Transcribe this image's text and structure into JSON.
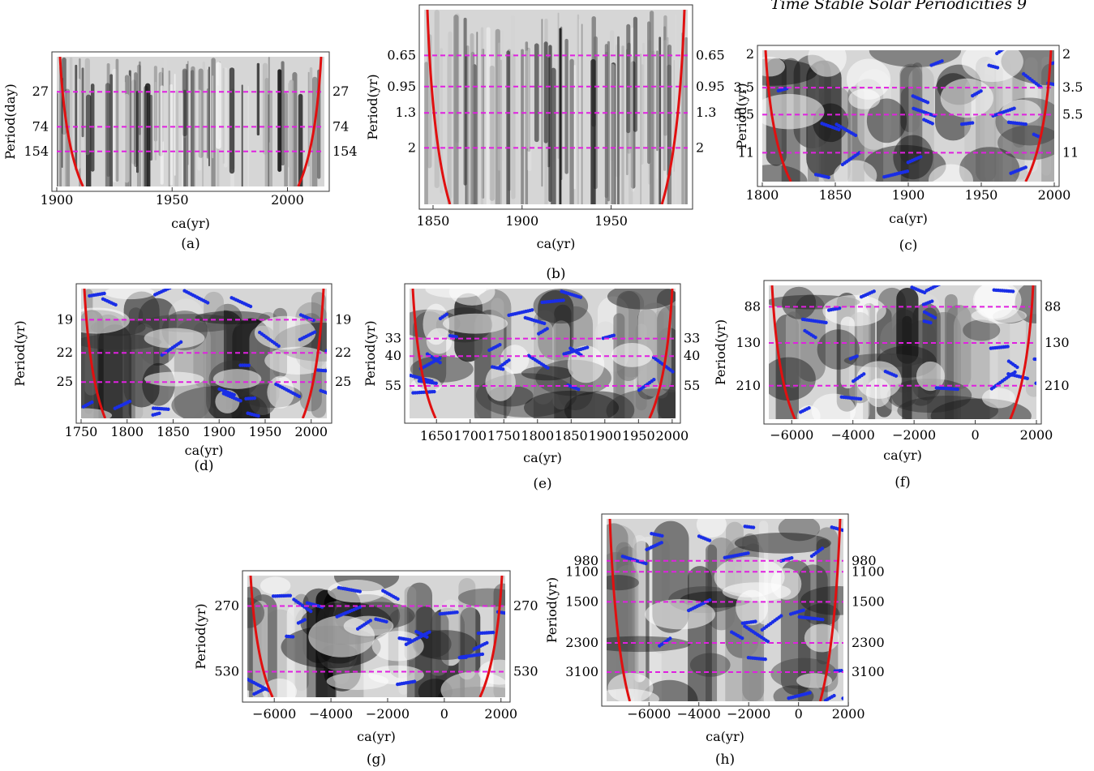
{
  "page_header": "Time Stable Solar Periodicities    9",
  "colors": {
    "cone": "#e01010",
    "ridge": "#1a2ee6",
    "guide": "#e020e0",
    "axis": "#333333"
  },
  "chart_data": [
    {
      "id": "a",
      "type": "heatmap",
      "caption": "(a)",
      "xlabel": "ca(yr)",
      "ylabel": "Period(day)",
      "xlim": [
        1900,
        2016
      ],
      "xticks": [
        1900,
        1950,
        2000
      ],
      "yticks": [
        "27",
        "74",
        "154"
      ],
      "guide_lines": [
        "27",
        "74",
        "154"
      ],
      "right_labels": [
        "27",
        "74",
        "154"
      ],
      "ridge_points": false
    },
    {
      "id": "b",
      "type": "heatmap",
      "caption": "(b)",
      "xlabel": "ca(yr)",
      "ylabel": "Period(yr)",
      "xlim": [
        1845,
        1993
      ],
      "xticks": [
        1850,
        1900,
        1950
      ],
      "yticks": [
        "0.65",
        "0.95",
        "1.3",
        "2"
      ],
      "guide_lines": [
        "0.65",
        "0.95",
        "1.3",
        "2"
      ],
      "right_labels": [
        "0.65",
        "0.95",
        "1.3",
        "2"
      ],
      "ridge_points": false
    },
    {
      "id": "c",
      "type": "heatmap",
      "caption": "(c)",
      "xlabel": "ca(yr)",
      "ylabel": "Period(yr)",
      "xlim": [
        1800,
        2000
      ],
      "xticks": [
        1800,
        1850,
        1900,
        1950,
        2000
      ],
      "yticks": [
        "2",
        "3.5",
        "5.5",
        "11"
      ],
      "guide_lines": [
        "3.5",
        "5.5",
        "11"
      ],
      "right_labels": [
        "2",
        "3.5",
        "5.5",
        "11"
      ],
      "ridge_points": true
    },
    {
      "id": "d",
      "type": "heatmap",
      "caption": "(d)",
      "xlabel": "ca(yr)",
      "ylabel": "Period(yr)",
      "xlim": [
        1750,
        2017
      ],
      "xticks": [
        1750,
        1800,
        1850,
        1900,
        1950,
        2000
      ],
      "yticks": [
        "19",
        "22",
        "25"
      ],
      "guide_lines": [
        "19",
        "22",
        "25"
      ],
      "right_labels": [
        "19",
        "22",
        "25"
      ],
      "ridge_points": true
    },
    {
      "id": "e",
      "type": "heatmap",
      "caption": "(e)",
      "xlabel": "ca(yr)",
      "ylabel": "Period(yr)",
      "xlim": [
        1610,
        2005
      ],
      "xticks": [
        1650,
        1700,
        1750,
        1800,
        1850,
        1900,
        1950,
        2000
      ],
      "yticks": [
        "33",
        "40",
        "55"
      ],
      "guide_lines": [
        "33",
        "40",
        "55"
      ],
      "right_labels": [
        "33",
        "40",
        "55"
      ],
      "ridge_points": true
    },
    {
      "id": "f",
      "type": "heatmap",
      "caption": "(f)",
      "xlabel": "ca(yr)",
      "ylabel": "Period(yr)",
      "xlim": [
        -6750,
        2000
      ],
      "xticks": [
        -6000,
        -4000,
        -2000,
        0,
        2000
      ],
      "yticks": [
        "88",
        "130",
        "210"
      ],
      "guide_lines": [
        "88",
        "130",
        "210"
      ],
      "right_labels": [
        "88",
        "130",
        "210"
      ],
      "ridge_points": true
    },
    {
      "id": "g",
      "type": "heatmap",
      "caption": "(g)",
      "xlabel": "ca(yr)",
      "ylabel": "Period(yr)",
      "xlim": [
        -6950,
        2150
      ],
      "xticks": [
        -6000,
        -4000,
        -2000,
        0,
        2000
      ],
      "yticks": [
        "270",
        "530"
      ],
      "guide_lines": [
        "270",
        "530"
      ],
      "right_labels": [
        "270",
        "530"
      ],
      "ridge_points": true
    },
    {
      "id": "h",
      "type": "heatmap",
      "caption": "(h)",
      "xlabel": "ca(yr)",
      "ylabel": "Period(yr)",
      "xlim": [
        -7700,
        1800
      ],
      "xticks": [
        -6000,
        -4000,
        -2000,
        0,
        2000
      ],
      "yticks": [
        "980",
        "1100",
        "1500",
        "2300",
        "3100"
      ],
      "guide_lines": [
        "980",
        "1100",
        "1500",
        "2300",
        "3100"
      ],
      "right_labels": [
        "980",
        "1100",
        "1500",
        "2300",
        "3100"
      ],
      "ridge_points": true
    }
  ]
}
